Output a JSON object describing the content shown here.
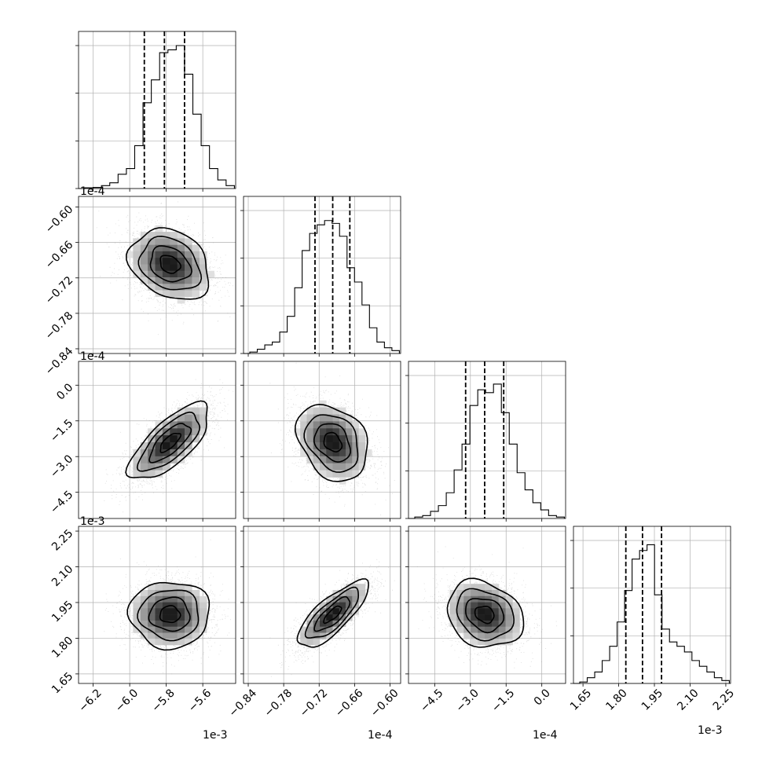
{
  "chart_data": {
    "type": "corner",
    "figure": "corner plot of 4 parameters (marginal histograms on diagonal, 2D density with contours below)",
    "parameters": [
      {
        "index": 0,
        "axis_range": [
          -6.28,
          -5.42
        ],
        "offset_label": "1e-3",
        "ticks": [
          -6.2,
          -6.0,
          -5.8,
          -5.6
        ],
        "tick_labels": [
          "−6.2",
          "−6.0",
          "−5.8",
          "−5.6"
        ],
        "quantiles": [
          -5.92,
          -5.81,
          -5.7
        ],
        "peak": -5.78,
        "sigma": 0.11
      },
      {
        "index": 1,
        "axis_range": [
          -0.848,
          -0.582
        ],
        "offset_label": "1e-4",
        "ticks": [
          -0.84,
          -0.78,
          -0.72,
          -0.66,
          -0.6
        ],
        "tick_labels": [
          "−0.84",
          "−0.78",
          "−0.72",
          "−0.66",
          "−0.60"
        ],
        "quantiles": [
          -0.727,
          -0.697,
          -0.668
        ],
        "peak": -0.697,
        "sigma": 0.03
      },
      {
        "index": 2,
        "axis_range": [
          -5.6,
          1.0
        ],
        "offset_label": "1e-4",
        "ticks": [
          -4.5,
          -3.0,
          -1.5,
          0.0
        ],
        "tick_labels": [
          "−4.5",
          "−3.0",
          "−1.5",
          "0.0"
        ],
        "quantiles": [
          -3.2,
          -2.4,
          -1.6
        ],
        "peak": -2.4,
        "sigma": 0.8
      },
      {
        "index": 3,
        "axis_range": [
          1.61,
          2.27
        ],
        "offset_label": "1e-3",
        "ticks": [
          1.65,
          1.8,
          1.95,
          2.1,
          2.25
        ],
        "tick_labels": [
          "1.65",
          "1.80",
          "1.95",
          "2.10",
          "2.25"
        ],
        "quantiles": [
          1.83,
          1.9,
          1.98
        ],
        "peak": 1.9,
        "sigma": 0.07
      }
    ],
    "marginal_histograms": [
      [
        0.005,
        0.008,
        0.02,
        0.04,
        0.1,
        0.14,
        0.3,
        0.6,
        0.76,
        0.95,
        0.97,
        1.0,
        0.8,
        0.52,
        0.3,
        0.14,
        0.06,
        0.02
      ],
      [
        0.01,
        0.03,
        0.06,
        0.08,
        0.15,
        0.26,
        0.46,
        0.72,
        0.84,
        0.9,
        0.93,
        0.91,
        0.82,
        0.6,
        0.5,
        0.34,
        0.18,
        0.08,
        0.04,
        0.02
      ],
      [
        0.01,
        0.02,
        0.05,
        0.09,
        0.18,
        0.34,
        0.52,
        0.79,
        0.9,
        0.88,
        0.94,
        0.74,
        0.52,
        0.32,
        0.2,
        0.11,
        0.06,
        0.02,
        0.01
      ],
      [
        0.01,
        0.04,
        0.08,
        0.16,
        0.26,
        0.43,
        0.65,
        0.87,
        0.93,
        0.97,
        0.62,
        0.38,
        0.29,
        0.26,
        0.22,
        0.16,
        0.12,
        0.08,
        0.04,
        0.02
      ]
    ],
    "pair_correlations": {
      "1-0": -0.25,
      "2-0": 0.72,
      "2-1": -0.28,
      "3-0": 0.0,
      "3-1": 0.78,
      "3-2": -0.2
    },
    "contour_levels_sigma": [
      0.5,
      1.0,
      1.5,
      2.0
    ],
    "sample_count_per_panel": 3000,
    "colors": {
      "density": "#000000",
      "samples": "#9a9a9a",
      "grid": "#b0b0b0"
    }
  }
}
